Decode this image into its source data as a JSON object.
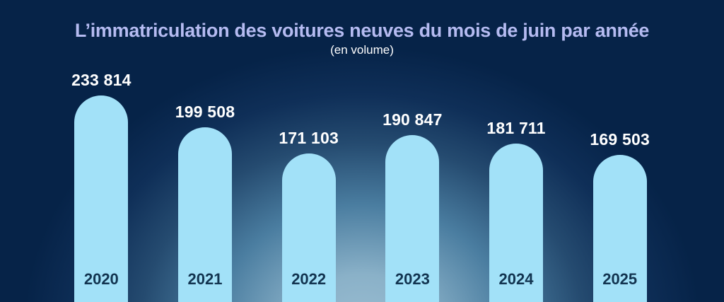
{
  "header": {
    "title": "L’immatriculation des voitures neuves du mois de juin par année",
    "subtitle": "(en volume)"
  },
  "chart_data": {
    "type": "bar",
    "title": "L’immatriculation des voitures neuves du mois de juin par année",
    "subtitle": "(en volume)",
    "categories": [
      "2020",
      "2021",
      "2022",
      "2023",
      "2024",
      "2025"
    ],
    "values": [
      233814,
      199508,
      171103,
      190847,
      181711,
      169503
    ],
    "value_labels": [
      "233 814",
      "199 508",
      "171 103",
      "190 847",
      "181 711",
      "169 503"
    ],
    "grid": false,
    "legend": "none",
    "axes": "none",
    "value_label_position": "above-bar",
    "category_label_position": "inside-bar-bottom"
  },
  "theme": {
    "bg_color": "#062348",
    "glow_color": "#99bcd1",
    "bar_color": "#a2e1f8",
    "title_color": "#b5bbf1",
    "subtitle_color": "#ffffff",
    "value_color": "#ffffff",
    "category_color": "#123450"
  }
}
